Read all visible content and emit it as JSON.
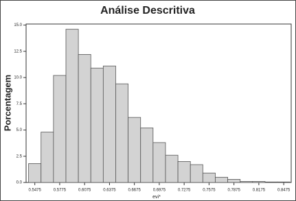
{
  "chart_data": {
    "type": "histogram",
    "title": "Análise Descritiva",
    "ylabel": "Porcentagem",
    "xlabel": "evi*",
    "bins": [
      0.54,
      0.555,
      0.57,
      0.585,
      0.6,
      0.615,
      0.63,
      0.645,
      0.66,
      0.675,
      0.69,
      0.705,
      0.72,
      0.735,
      0.75,
      0.765,
      0.78,
      0.795,
      0.81,
      0.825,
      0.84,
      0.855
    ],
    "values": [
      1.8,
      4.8,
      10.2,
      14.6,
      12.2,
      10.9,
      11.1,
      9.4,
      6.2,
      5.2,
      3.8,
      2.6,
      2.0,
      1.7,
      0.9,
      0.5,
      0.3,
      0.1,
      0.1,
      0.05,
      0.05
    ],
    "color": "#d3d3d3",
    "xlim": [
      0.537,
      0.8565
    ],
    "xticks": [
      0.5475,
      0.5775,
      0.6075,
      0.6375,
      0.6675,
      0.6975,
      0.7275,
      0.7575,
      0.7875,
      0.8175,
      0.8475
    ],
    "ylim": [
      0,
      15.1
    ],
    "yticks": [
      {
        "value": 0,
        "label": "0.0"
      },
      2.5,
      {
        "value": 5,
        "label": "5.0"
      },
      7.5,
      {
        "value": 10,
        "label": "10.0"
      },
      12.5,
      {
        "value": 15,
        "label": "15.0"
      }
    ]
  }
}
